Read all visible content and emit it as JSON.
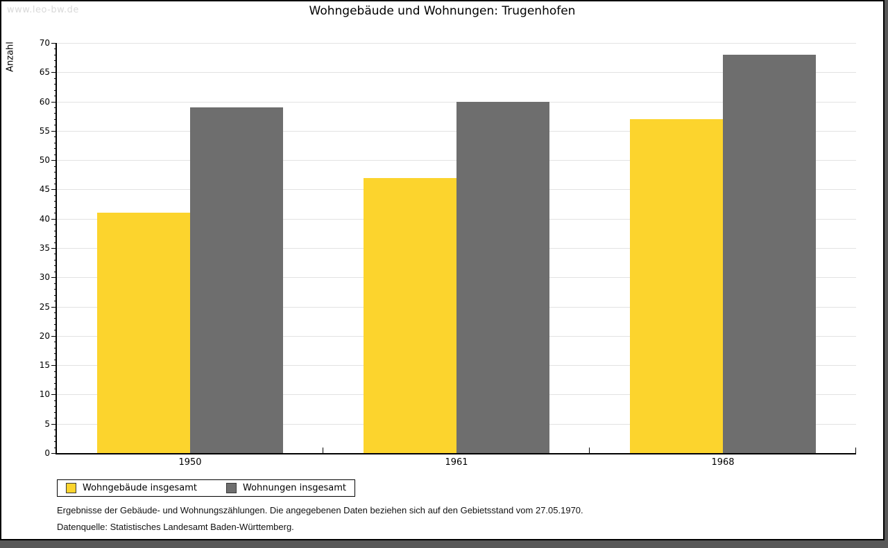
{
  "page": {
    "watermark": "www.leo-bw.de",
    "title": "Wohngebäude und Wohnungen: Trugenhofen",
    "footnote_line1": "Ergebnisse der Gebäude- und Wohnungszählungen. Die angegebenen Daten beziehen sich auf den Gebietsstand vom 27.05.1970.",
    "footnote_line2": "Datenquelle: Statistisches Landesamt Baden-Württemberg."
  },
  "chart_data": {
    "type": "bar",
    "title": "Wohngebäude und Wohnungen: Trugenhofen",
    "categories": [
      "1950",
      "1961",
      "1968"
    ],
    "series": [
      {
        "name": "Wohngebäude insgesamt",
        "color": "#FCD42D",
        "values": [
          41,
          47,
          57
        ]
      },
      {
        "name": "Wohnungen insgesamt",
        "color": "#6E6E6E",
        "values": [
          59,
          60,
          68
        ]
      }
    ],
    "xlabel": "",
    "ylabel": "Anzahl",
    "ylim": [
      0,
      70
    ],
    "ytick_major": 5,
    "ytick_minor": 1,
    "grid": true,
    "gridline_color": "#E2E2E2",
    "legend_position": "bottom-left"
  }
}
